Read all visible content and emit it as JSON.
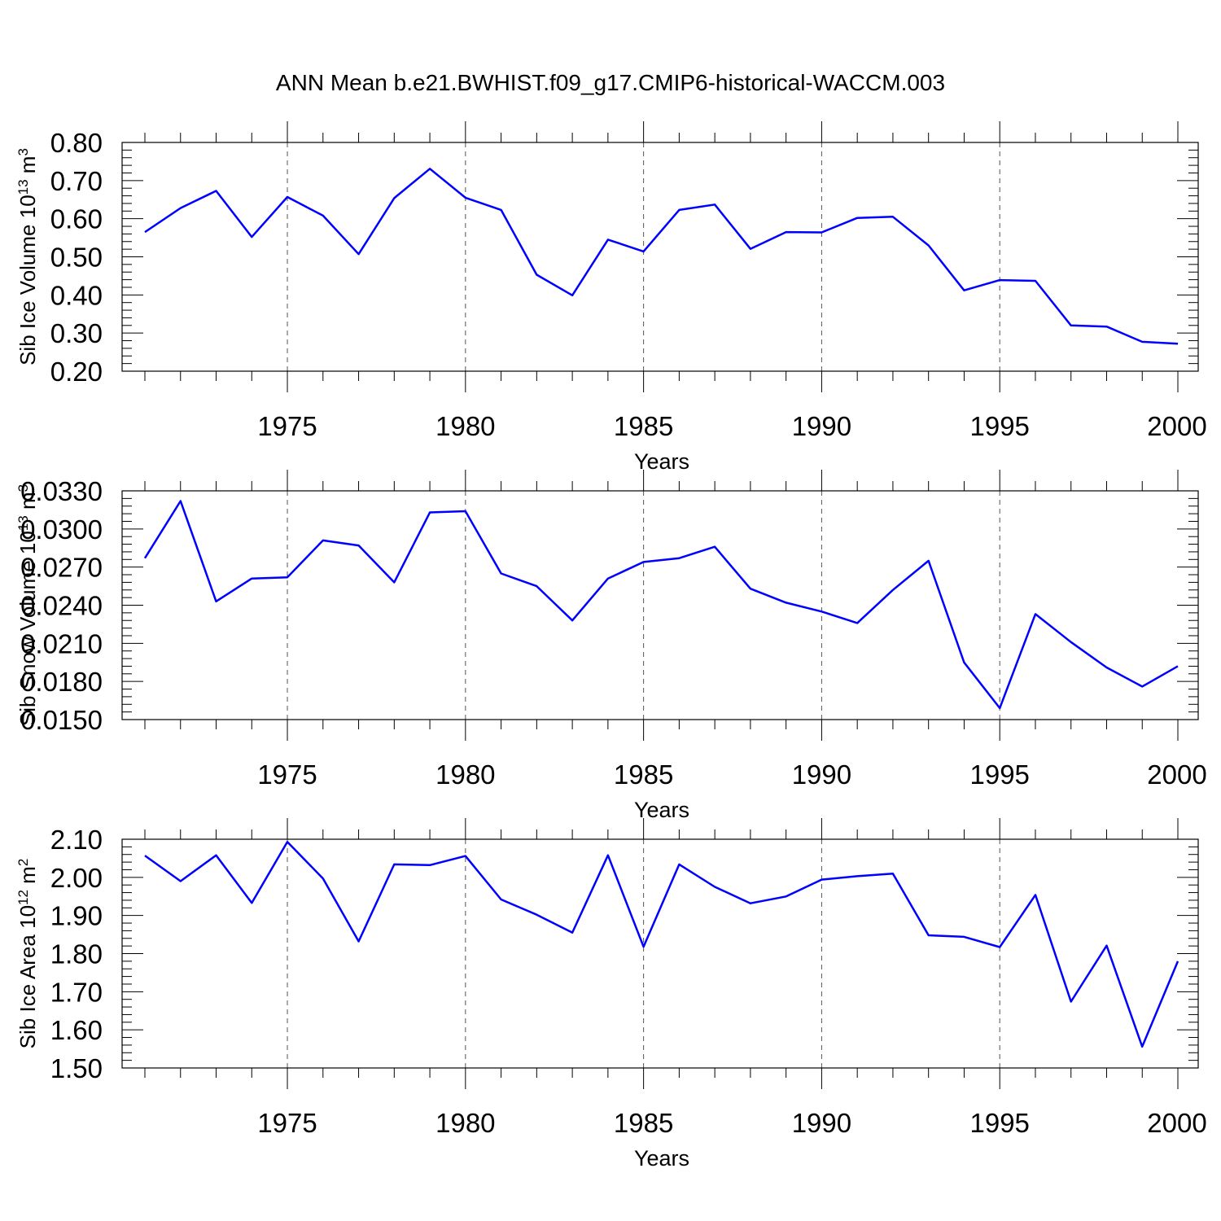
{
  "title": "ANN Mean b.e21.BWHIST.f09_g17.CMIP6-historical-WACCM.003",
  "colors": {
    "line": "#0000ff",
    "axis": "#000000"
  },
  "chart_data": [
    {
      "type": "line",
      "ylabel": {
        "main": "Sib Ice Volume 10",
        "exp": "13",
        "unit": " m",
        "unit_exp": "3"
      },
      "xlabel": "Years",
      "x": [
        1971,
        1972,
        1973,
        1974,
        1975,
        1976,
        1977,
        1978,
        1979,
        1980,
        1981,
        1982,
        1983,
        1984,
        1985,
        1986,
        1987,
        1988,
        1989,
        1990,
        1991,
        1992,
        1993,
        1994,
        1995,
        1996,
        1997,
        1998,
        1999,
        2000
      ],
      "values": [
        0.565,
        0.628,
        0.673,
        0.552,
        0.657,
        0.608,
        0.507,
        0.654,
        0.731,
        0.655,
        0.623,
        0.453,
        0.399,
        0.545,
        0.514,
        0.623,
        0.637,
        0.521,
        0.565,
        0.564,
        0.602,
        0.605,
        0.53,
        0.412,
        0.439,
        0.437,
        0.32,
        0.317,
        0.277,
        0.272
      ],
      "ylim": [
        0.2,
        0.8
      ],
      "yticks": [
        "0.20",
        "0.30",
        "0.40",
        "0.50",
        "0.60",
        "0.70",
        "0.80"
      ],
      "xlim": [
        1971,
        2000
      ],
      "xticks": [
        "1975",
        "1980",
        "1985",
        "1990",
        "1995",
        "2000"
      ]
    },
    {
      "type": "line",
      "ylabel": {
        "main": "Sib Snow Volume 10",
        "exp": "13",
        "unit": " m",
        "unit_exp": "3"
      },
      "xlabel": "Years",
      "x": [
        1971,
        1972,
        1973,
        1974,
        1975,
        1976,
        1977,
        1978,
        1979,
        1980,
        1981,
        1982,
        1983,
        1984,
        1985,
        1986,
        1987,
        1988,
        1989,
        1990,
        1991,
        1992,
        1993,
        1994,
        1995,
        1996,
        1997,
        1998,
        1999,
        2000
      ],
      "values": [
        0.0277,
        0.0322,
        0.0243,
        0.0261,
        0.0262,
        0.0291,
        0.0287,
        0.0258,
        0.0313,
        0.0314,
        0.0265,
        0.0255,
        0.0228,
        0.0261,
        0.0274,
        0.0277,
        0.0286,
        0.0253,
        0.0242,
        0.0235,
        0.0226,
        0.0252,
        0.0275,
        0.0195,
        0.0159,
        0.0233,
        0.0211,
        0.0191,
        0.0176,
        0.0192
      ],
      "ylim": [
        0.015,
        0.033
      ],
      "yticks": [
        "0.0150",
        "0.0180",
        "0.0210",
        "0.0240",
        "0.0270",
        "0.0300",
        "0.0330"
      ],
      "xlim": [
        1971,
        2000
      ],
      "xticks": [
        "1975",
        "1980",
        "1985",
        "1990",
        "1995",
        "2000"
      ]
    },
    {
      "type": "line",
      "ylabel": {
        "main": "Sib Ice Area 10",
        "exp": "12",
        "unit": " m",
        "unit_exp": "2"
      },
      "xlabel": "Years",
      "x": [
        1971,
        1972,
        1973,
        1974,
        1975,
        1976,
        1977,
        1978,
        1979,
        1980,
        1981,
        1982,
        1983,
        1984,
        1985,
        1986,
        1987,
        1988,
        1989,
        1990,
        1991,
        1992,
        1993,
        1994,
        1995,
        1996,
        1997,
        1998,
        1999,
        2000
      ],
      "values": [
        2.057,
        1.99,
        2.058,
        1.933,
        2.093,
        1.997,
        1.832,
        2.034,
        2.032,
        2.056,
        1.942,
        1.902,
        1.855,
        2.058,
        1.818,
        2.034,
        1.975,
        1.932,
        1.95,
        1.994,
        2.003,
        2.01,
        1.848,
        1.844,
        1.817,
        1.954,
        1.674,
        1.821,
        1.556,
        1.78
      ],
      "ylim": [
        1.5,
        2.1
      ],
      "yticks": [
        "1.50",
        "1.60",
        "1.70",
        "1.80",
        "1.90",
        "2.00",
        "2.10"
      ],
      "xlim": [
        1971,
        2000
      ],
      "xticks": [
        "1975",
        "1980",
        "1985",
        "1990",
        "1995",
        "2000"
      ]
    }
  ]
}
